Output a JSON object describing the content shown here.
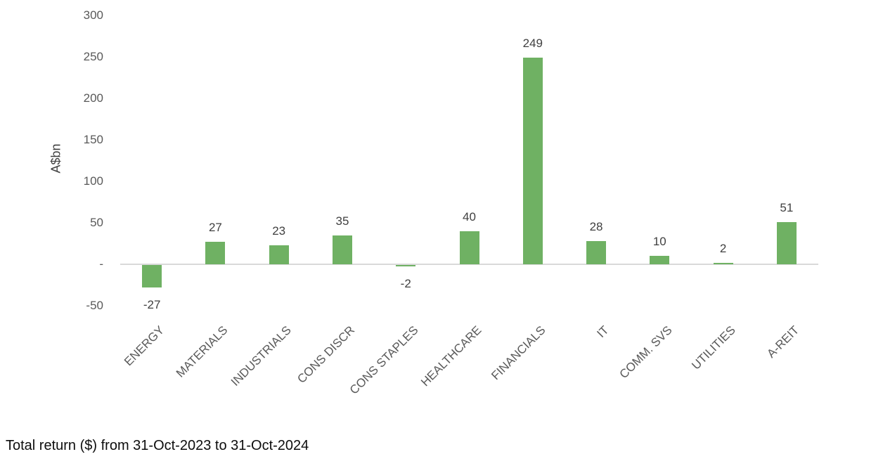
{
  "caption": "Total return ($) from 31-Oct-2023 to 31-Oct-2024",
  "chart_data": {
    "type": "bar",
    "title": "",
    "xlabel": "",
    "ylabel": "A$bn",
    "categories": [
      "ENERGY",
      "MATERIALS",
      "INDUSTRIALS",
      "CONS DISCR",
      "CONS STAPLES",
      "HEALTHCARE",
      "FINANCIALS",
      "IT",
      "COMM. SVS",
      "UTILITIES",
      "A-REIT"
    ],
    "values": [
      -27,
      27,
      23,
      35,
      -2,
      40,
      249,
      28,
      10,
      2,
      51
    ],
    "data_labels_shown": true,
    "ylim": [
      -50,
      300
    ],
    "ytick_values": [
      300,
      250,
      200,
      150,
      100,
      50,
      0,
      -50
    ],
    "ytick_labels": [
      "300",
      "250",
      "200",
      "150",
      "100",
      "50",
      "-",
      "-50"
    ],
    "grid": false,
    "legend": null,
    "colors": {
      "bar": "#6FB163",
      "axis_line": "#D9D9D9",
      "tick_label": "#595959",
      "category_label": "#595959",
      "data_label": "#404040",
      "y_axis_title": "#404040",
      "caption_text": "#0D0D0D",
      "background": "#FFFFFF"
    }
  }
}
